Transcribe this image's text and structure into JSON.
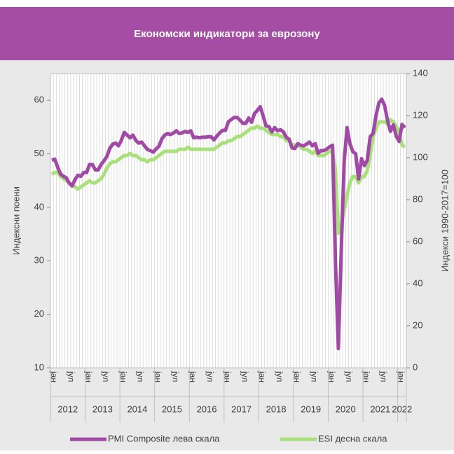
{
  "chart_data": {
    "type": "line",
    "title": "Економски индикатори за еврозону",
    "y_label": "Индексни поени",
    "y2_label": "Индекси 1990-2017=100",
    "categories": [
      "јан",
      null,
      null,
      null,
      null,
      null,
      "јул",
      null,
      null,
      null,
      null,
      null,
      "јан",
      null,
      null,
      null,
      null,
      null,
      "јул",
      null,
      null,
      null,
      null,
      null,
      "јан",
      null,
      null,
      null,
      null,
      null,
      "јул",
      null,
      null,
      null,
      null,
      null,
      "јан",
      null,
      null,
      null,
      null,
      null,
      "јул",
      null,
      null,
      null,
      null,
      null,
      "јан",
      null,
      null,
      null,
      null,
      null,
      "јул",
      null,
      null,
      null,
      null,
      null,
      "јан",
      null,
      null,
      null,
      null,
      null,
      "јул",
      null,
      null,
      null,
      null,
      null,
      "јан",
      null,
      null,
      null,
      null,
      null,
      "јул",
      null,
      null,
      null,
      null,
      null,
      "јан",
      null,
      null,
      null,
      null,
      null,
      "јул",
      null,
      null,
      null,
      null,
      null,
      "јан",
      null,
      null,
      null,
      null,
      null,
      "јул",
      null,
      null,
      null,
      null,
      null,
      "јан",
      null,
      null,
      null,
      null,
      null,
      "јул",
      null,
      null,
      null,
      null,
      null,
      "јан",
      null,
      null
    ],
    "years": [
      "2012",
      "2013",
      "2014",
      "2015",
      "2016",
      "2017",
      "2018",
      "2019",
      "2020",
      "2021",
      "2022"
    ],
    "series": [
      {
        "name": "PMI Composite лева скала",
        "color": "#a04aa5",
        "axis": "y",
        "values": [
          48.8,
          49.0,
          47.5,
          46.2,
          45.8,
          45.5,
          44.5,
          44.0,
          45.2,
          46.0,
          45.8,
          46.5,
          46.5,
          48.0,
          48.0,
          47.0,
          47.0,
          48.0,
          48.7,
          49.5,
          51.0,
          51.8,
          52.0,
          51.5,
          52.5,
          54.0,
          53.5,
          53.0,
          53.5,
          52.5,
          52.0,
          52.2,
          51.5,
          50.8,
          50.6,
          50.3,
          50.9,
          51.4,
          52.8,
          53.5,
          53.8,
          53.6,
          53.9,
          54.3,
          53.8,
          53.9,
          54.2,
          54.0,
          54.3,
          53.0,
          53.1,
          53.0,
          53.1,
          53.1,
          53.2,
          53.2,
          52.6,
          53.3,
          53.9,
          54.4,
          54.4,
          56.0,
          56.4,
          56.8,
          56.8,
          56.3,
          55.7,
          55.7,
          56.7,
          55.9,
          57.5,
          58.1,
          58.8,
          57.1,
          55.2,
          55.1,
          54.1,
          54.9,
          54.3,
          54.5,
          54.1,
          53.1,
          52.7,
          51.1,
          51.0,
          51.9,
          51.6,
          51.5,
          51.8,
          52.2,
          51.5,
          51.9,
          50.1,
          50.6,
          50.6,
          50.9,
          51.3,
          51.6,
          29.7,
          13.6,
          31.9,
          48.5,
          54.9,
          51.9,
          50.4,
          50.0,
          45.3,
          49.1,
          47.8,
          48.8,
          53.2,
          53.8,
          57.1,
          59.5,
          60.2,
          59.0,
          56.2,
          54.2,
          55.4,
          53.3,
          52.3,
          55.5,
          54.9
        ]
      },
      {
        "name": "ESI десна скала",
        "color": "#a9e07b",
        "axis": "y2",
        "values": [
          92,
          93,
          93,
          91,
          90,
          89,
          88,
          87,
          86,
          85,
          86,
          87,
          88,
          89,
          88,
          88,
          89,
          90,
          92,
          95,
          97,
          98,
          98,
          99,
          100,
          101,
          101,
          102,
          101,
          101,
          100,
          99,
          99,
          98,
          99,
          99,
          100,
          101,
          102,
          103,
          103,
          103,
          103,
          103,
          104,
          104,
          104,
          105,
          104,
          104,
          104,
          104,
          104,
          104,
          104,
          104,
          104,
          105,
          106,
          107,
          107,
          108,
          108,
          109,
          110,
          110,
          111,
          112,
          113,
          114,
          114,
          115,
          114,
          114,
          113,
          112,
          111,
          111,
          111,
          110,
          110,
          108,
          108,
          106,
          106,
          106,
          105,
          104,
          104,
          103,
          102,
          103,
          101,
          101,
          101,
          102,
          103,
          103,
          94,
          64,
          67,
          75,
          82,
          88,
          91,
          91,
          88,
          91,
          91,
          94,
          101,
          110,
          114,
          117,
          117,
          117,
          116,
          118,
          117,
          115,
          112,
          106,
          105
        ]
      }
    ],
    "ylim": [
      10,
      65
    ],
    "yticks": [
      10,
      20,
      30,
      40,
      50,
      60
    ],
    "y2lim": [
      0,
      140
    ],
    "y2ticks": [
      0,
      20,
      40,
      60,
      80,
      100,
      120,
      140
    ],
    "xgrid": true,
    "legend": "bottom"
  }
}
